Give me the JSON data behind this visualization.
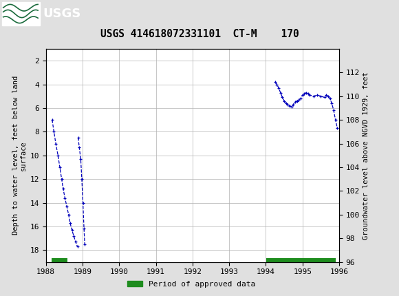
{
  "title": "USGS 414618072331101  CT-M    170",
  "ylabel_left": "Depth to water level, feet below land\nsurface",
  "ylabel_right": "Groundwater level above NGVD 1929, feet",
  "xlim": [
    1988.0,
    1996.0
  ],
  "ylim_left": [
    19,
    1
  ],
  "ylim_right": [
    96,
    114
  ],
  "xticks": [
    1988,
    1989,
    1990,
    1991,
    1992,
    1993,
    1994,
    1995,
    1996
  ],
  "yticks_left": [
    2,
    4,
    6,
    8,
    10,
    12,
    14,
    16,
    18
  ],
  "yticks_right": [
    96,
    98,
    100,
    102,
    104,
    106,
    108,
    110,
    112
  ],
  "plot_bg_color": "#ffffff",
  "header_color": "#1a6b3c",
  "line_color": "#0000bb",
  "approved_color": "#1e8c1e",
  "series1_x": [
    1988.17,
    1988.22,
    1988.27,
    1988.33,
    1988.38,
    1988.43,
    1988.47,
    1988.52,
    1988.57,
    1988.62,
    1988.66,
    1988.71,
    1988.76,
    1988.81,
    1988.86
  ],
  "series1_y": [
    7.0,
    8.0,
    9.0,
    10.0,
    11.0,
    12.0,
    12.8,
    13.6,
    14.3,
    15.0,
    15.7,
    16.3,
    16.8,
    17.3,
    17.7
  ],
  "series2_x": [
    1988.88,
    1988.91,
    1988.95,
    1988.98,
    1989.01,
    1989.04,
    1989.06
  ],
  "series2_y": [
    8.5,
    9.3,
    10.3,
    12.0,
    14.0,
    16.2,
    17.5
  ],
  "series3_x": [
    1994.25,
    1994.3,
    1994.35,
    1994.4,
    1994.45,
    1994.5,
    1994.55,
    1994.6,
    1994.65,
    1994.7,
    1994.75,
    1994.8,
    1994.85,
    1994.9,
    1994.95,
    1995.0,
    1995.05,
    1995.1,
    1995.15,
    1995.2,
    1995.3,
    1995.4,
    1995.5,
    1995.6,
    1995.65,
    1995.7,
    1995.75,
    1995.8,
    1995.85,
    1995.9,
    1995.95
  ],
  "series3_y": [
    3.8,
    4.0,
    4.3,
    4.7,
    5.1,
    5.4,
    5.6,
    5.7,
    5.8,
    5.9,
    5.7,
    5.5,
    5.4,
    5.3,
    5.2,
    4.9,
    4.8,
    4.7,
    4.8,
    4.9,
    5.0,
    4.9,
    5.0,
    5.1,
    4.9,
    5.0,
    5.2,
    5.6,
    6.2,
    7.0,
    7.7
  ],
  "approved_bar1_start": 1988.15,
  "approved_bar1_end": 1988.58,
  "approved_bar2_start": 1994.02,
  "approved_bar2_end": 1995.9,
  "legend_label": "Period of approved data",
  "fig_width": 5.8,
  "fig_height": 4.3,
  "dpi": 100
}
